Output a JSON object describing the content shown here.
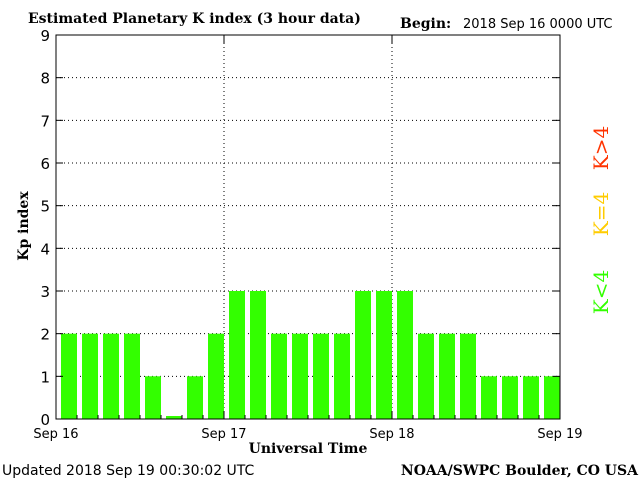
{
  "header": {
    "title": "Estimated Planetary K index (3 hour data)",
    "begin_label": "Begin:",
    "begin_value": "2018 Sep 16 0000 UTC"
  },
  "footer": {
    "updated": "Updated 2018 Sep 19 00:30:02 UTC",
    "source": "NOAA/SWPC Boulder, CO USA"
  },
  "legend": {
    "above": "K>4",
    "equal": "K=4",
    "below": "K<4"
  },
  "colors": {
    "below": "#33ff00",
    "equal": "#ffcc00",
    "above": "#ff3300"
  },
  "chart_data": {
    "type": "bar",
    "title": "Estimated Planetary K index (3 hour data)",
    "xlabel": "Universal Time",
    "ylabel": "Kp index",
    "ylim": [
      0,
      9
    ],
    "yticks": [
      "0",
      "1",
      "2",
      "3",
      "4",
      "5",
      "6",
      "7",
      "8",
      "9"
    ],
    "xticks": [
      "Sep 16",
      "Sep 17",
      "Sep 18",
      "Sep 19"
    ],
    "bar_hours_per_bin": 3,
    "values": [
      2,
      2,
      2,
      2,
      1,
      0.07,
      1,
      2,
      3,
      3,
      2,
      2,
      2,
      2,
      3,
      3,
      3,
      2,
      2,
      2,
      1,
      1,
      1,
      1
    ],
    "grid": "dotted",
    "legend_position": "right"
  }
}
